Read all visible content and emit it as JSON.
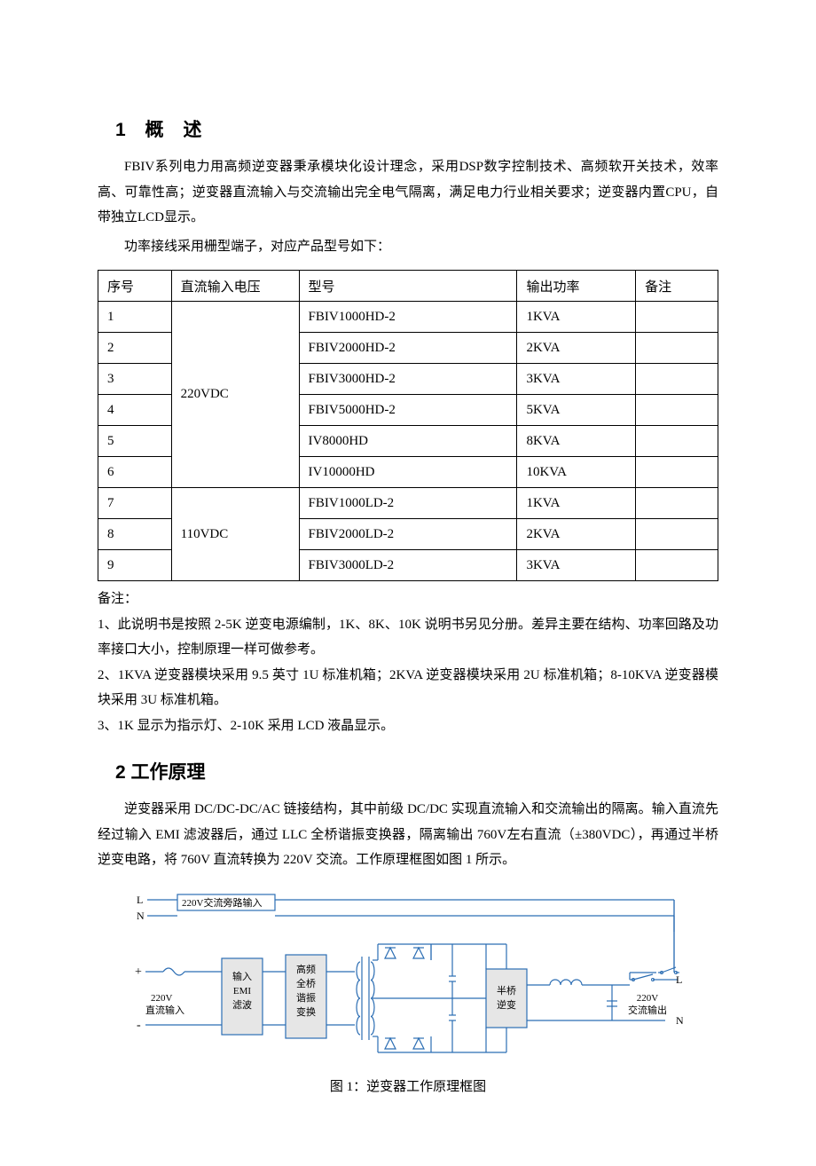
{
  "section1": {
    "title": "1 概 述",
    "para1": "FBIV系列电力用高频逆变器秉承模块化设计理念，采用DSP数字控制技术、高频软开关技术，效率高、可靠性高；逆变器直流输入与交流输出完全电气隔离，满足电力行业相关要求；逆变器内置CPU，自带独立LCD显示。",
    "para2": "功率接线采用栅型端子，对应产品型号如下：",
    "table": {
      "columns": [
        "序号",
        "直流输入电压",
        "型号",
        "输出功率",
        "备注"
      ],
      "groups": [
        {
          "vin": "220VDC",
          "rows": [
            {
              "seq": "1",
              "model": "FBIV1000HD-2",
              "power": "1KVA",
              "remark": ""
            },
            {
              "seq": "2",
              "model": "FBIV2000HD-2",
              "power": "2KVA",
              "remark": ""
            },
            {
              "seq": "3",
              "model": "FBIV3000HD-2",
              "power": "3KVA",
              "remark": ""
            },
            {
              "seq": "4",
              "model": "FBIV5000HD-2",
              "power": "5KVA",
              "remark": ""
            },
            {
              "seq": "5",
              "model": "IV8000HD",
              "power": "8KVA",
              "remark": ""
            },
            {
              "seq": "6",
              "model": "IV10000HD",
              "power": "10KVA",
              "remark": ""
            }
          ]
        },
        {
          "vin": "110VDC",
          "rows": [
            {
              "seq": "7",
              "model": "FBIV1000LD-2",
              "power": "1KVA",
              "remark": ""
            },
            {
              "seq": "8",
              "model": "FBIV2000LD-2",
              "power": "2KVA",
              "remark": ""
            },
            {
              "seq": "9",
              "model": "FBIV3000LD-2",
              "power": "3KVA",
              "remark": ""
            }
          ]
        }
      ]
    },
    "notes_label": "备注：",
    "notes": [
      "1、此说明书是按照 2-5K 逆变电源编制，1K、8K、10K 说明书另见分册。差异主要在结构、功率回路及功率接口大小，控制原理一样可做参考。",
      "2、1KVA 逆变器模块采用 9.5 英寸 1U 标准机箱；2KVA 逆变器模块采用 2U 标准机箱；8-10KVA 逆变器模块采用 3U 标准机箱。",
      "3、1K 显示为指示灯、2-10K 采用 LCD 液晶显示。"
    ]
  },
  "section2": {
    "title": "2 工作原理",
    "para1": "逆变器采用 DC/DC-DC/AC 链接结构，其中前级 DC/DC 实现直流输入和交流输出的隔离。输入直流先经过输入 EMI 滤波器后，通过 LLC 全桥谐振变换器，隔离输出 760V左右直流（±380VDC），再通过半桥逆变电路，将 760V 直流转换为 220V 交流。工作原理框图如图 1 所示。",
    "figure": {
      "caption": "图 1：逆变器工作原理框图",
      "colors": {
        "line": "#2b6db3",
        "block_fill": "#e6e6e6",
        "block_stroke": "#2b6db3",
        "text": "#000000"
      },
      "labels": {
        "bypass": "220V交流旁路输入",
        "L": "L",
        "N": "N",
        "plus": "+",
        "minus": "-",
        "dc_in_1": "220V",
        "dc_in_2": "直流输入",
        "block1_l1": "输入",
        "block1_l2": "EMI",
        "block1_l3": "滤波",
        "block2_l1": "高频",
        "block2_l2": "全桥",
        "block2_l3": "谐振",
        "block2_l4": "变换",
        "block3_l1": "半桥",
        "block3_l2": "逆变",
        "ac_out_1": "220V",
        "ac_out_2": "交流输出"
      }
    }
  }
}
